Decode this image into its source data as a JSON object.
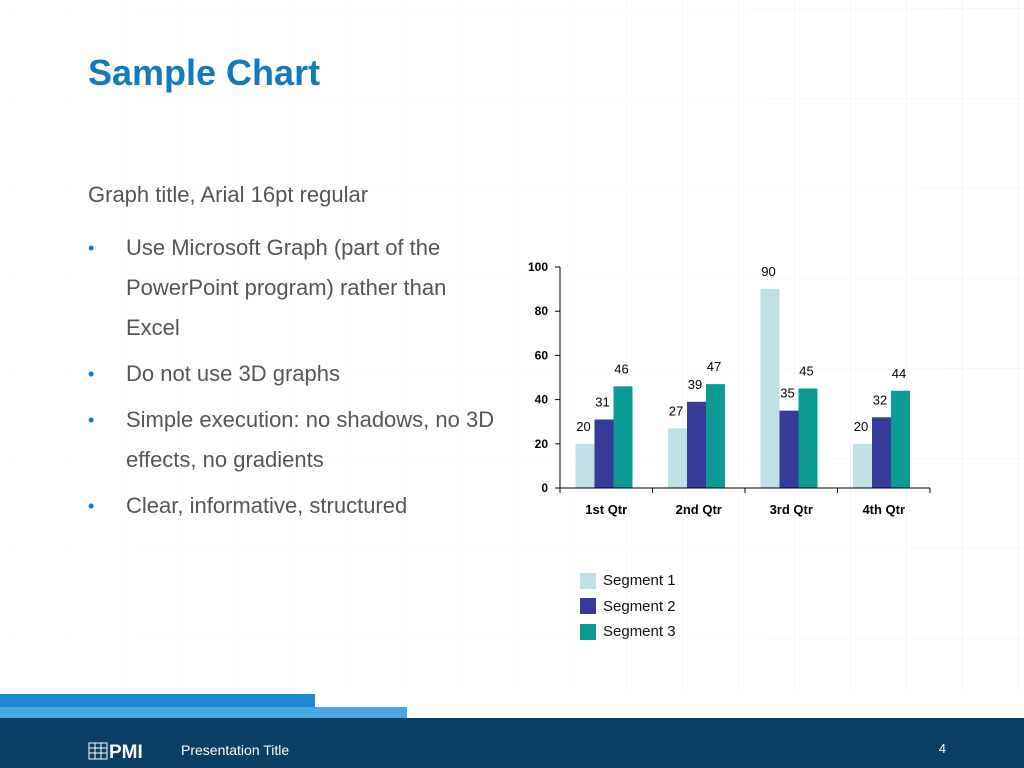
{
  "slide": {
    "title": "Sample Chart",
    "subtitle": "Graph title, Arial 16pt regular",
    "bullets": [
      "Use Microsoft Graph (part of the PowerPoint program) rather than Excel",
      "Do not use 3D graphs",
      "Simple execution: no shadows, no 3D effects, no gradients",
      "Clear, informative, structured"
    ],
    "bullet_symbol": "•"
  },
  "footer": {
    "presentation_title": "Presentation Title",
    "page_number": "4",
    "logo_text": "PMI",
    "background_color": "#0a3f63"
  },
  "chart_data": {
    "type": "bar",
    "categories": [
      "1st Qtr",
      "2nd Qtr",
      "3rd Qtr",
      "4th Qtr"
    ],
    "series": [
      {
        "name": "Segment 1",
        "color": "#bfe0e4",
        "values": [
          20,
          27,
          90,
          20
        ]
      },
      {
        "name": "Segment 2",
        "color": "#363b99",
        "values": [
          31,
          39,
          35,
          32
        ]
      },
      {
        "name": "Segment 3",
        "color": "#0c9a95",
        "values": [
          46,
          47,
          45,
          44
        ]
      }
    ],
    "ylim": [
      0,
      100
    ],
    "yticks": [
      0,
      20,
      40,
      60,
      80,
      100
    ],
    "grid": false,
    "data_labels": true,
    "legend_position": "bottom"
  }
}
